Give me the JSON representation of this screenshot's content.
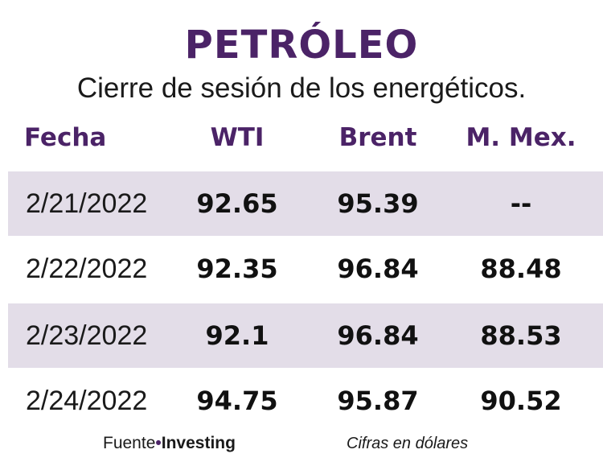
{
  "title": "PETRÓLEO",
  "subtitle": "Cierre de sesión de los energéticos.",
  "colors": {
    "accent": "#4b2367",
    "row_shade": "#e3dde8",
    "text": "#111111"
  },
  "chart_data": {
    "type": "table",
    "title": "PETRÓLEO",
    "subtitle": "Cierre de sesión de los energéticos.",
    "columns": [
      "Fecha",
      "WTI",
      "Brent",
      "M. Mex."
    ],
    "rows": [
      [
        "2/21/2022",
        "92.65",
        "95.39",
        "--"
      ],
      [
        "2/22/2022",
        "92.35",
        "96.84",
        "88.48"
      ],
      [
        "2/23/2022",
        "92.1",
        "96.84",
        "88.53"
      ],
      [
        "2/24/2022",
        "94.75",
        "95.87",
        "90.52"
      ]
    ]
  },
  "footer": {
    "source_prefix": "Fuente",
    "bullet": "•",
    "source_name": "Investing",
    "note": "Cifras en dólares"
  }
}
